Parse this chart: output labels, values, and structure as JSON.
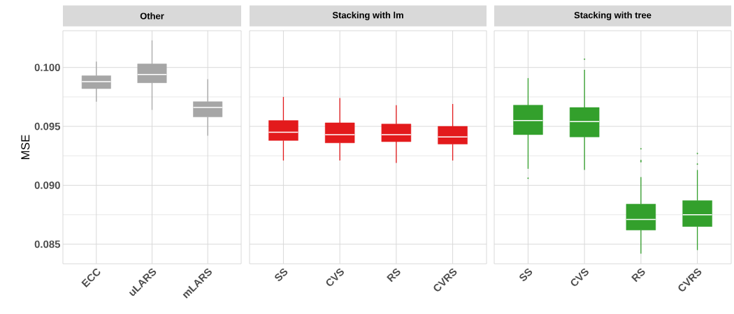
{
  "chart_data": [
    {
      "type": "box",
      "title": "Other",
      "ylabel": "MSE",
      "categories": [
        "ECC",
        "uLARS",
        "mLARS"
      ],
      "color": "#a6a6a6",
      "grid": true,
      "ylim": [
        0.08334,
        0.10312
      ],
      "yticks": [
        {
          "value": 0.085,
          "label": "0.085"
        },
        {
          "value": 0.09,
          "label": "0.090"
        },
        {
          "value": 0.095,
          "label": "0.095"
        },
        {
          "value": 0.1,
          "label": "0.100"
        }
      ],
      "boxes": [
        {
          "low": 0.0971,
          "q1": 0.0982,
          "median": 0.0988,
          "q3": 0.0993,
          "high": 0.1005
        },
        {
          "low": 0.0964,
          "q1": 0.0987,
          "median": 0.0994,
          "q3": 0.1003,
          "high": 0.1023
        },
        {
          "low": 0.0942,
          "q1": 0.0958,
          "median": 0.0966,
          "q3": 0.0971,
          "high": 0.099
        }
      ]
    },
    {
      "type": "box",
      "title": "Stacking with lm",
      "categories": [
        "SS",
        "CVS",
        "RS",
        "CVRS"
      ],
      "color": "#e31a1c",
      "grid": true,
      "tick_labels": "x",
      "ylim": [
        0.08334,
        0.10312
      ],
      "yticks": [
        {
          "value": 0.085,
          "label": null
        },
        {
          "value": 0.09,
          "label": null
        },
        {
          "value": 0.095,
          "label": null
        },
        {
          "value": 0.1,
          "label": null
        }
      ],
      "boxes": [
        {
          "low": 0.0921,
          "q1": 0.0938,
          "median": 0.0945,
          "q3": 0.0955,
          "high": 0.0975
        },
        {
          "low": 0.0921,
          "q1": 0.0936,
          "median": 0.0943,
          "q3": 0.0953,
          "high": 0.0974
        },
        {
          "low": 0.0919,
          "q1": 0.0937,
          "median": 0.0943,
          "q3": 0.0952,
          "high": 0.0968
        },
        {
          "low": 0.0921,
          "q1": 0.0935,
          "median": 0.0941,
          "q3": 0.095,
          "high": 0.0969
        }
      ]
    },
    {
      "type": "box",
      "title": "Stacking with tree",
      "categories": [
        "SS",
        "CVS",
        "RS",
        "CVRS"
      ],
      "color": "#33a02c",
      "grid": true,
      "tick_labels": "x",
      "ylim": [
        0.08334,
        0.10312
      ],
      "yticks": [
        {
          "value": 0.085,
          "label": null
        },
        {
          "value": 0.09,
          "label": null
        },
        {
          "value": 0.095,
          "label": null
        },
        {
          "value": 0.1,
          "label": null
        }
      ],
      "boxes": [
        {
          "low": 0.0914,
          "q1": 0.0943,
          "median": 0.0955,
          "q3": 0.0968,
          "high": 0.0991,
          "outliers": [
            0.0906
          ]
        },
        {
          "low": 0.0913,
          "q1": 0.0941,
          "median": 0.0954,
          "q3": 0.0966,
          "high": 0.0998,
          "outliers": [
            0.1007
          ]
        },
        {
          "low": 0.0842,
          "q1": 0.0862,
          "median": 0.0871,
          "q3": 0.0884,
          "high": 0.0907,
          "outliers": [
            0.0931,
            0.0921,
            0.092
          ]
        },
        {
          "low": 0.0845,
          "q1": 0.0865,
          "median": 0.0875,
          "q3": 0.0887,
          "high": 0.0913,
          "outliers": [
            0.0927,
            0.0918
          ]
        }
      ]
    }
  ]
}
